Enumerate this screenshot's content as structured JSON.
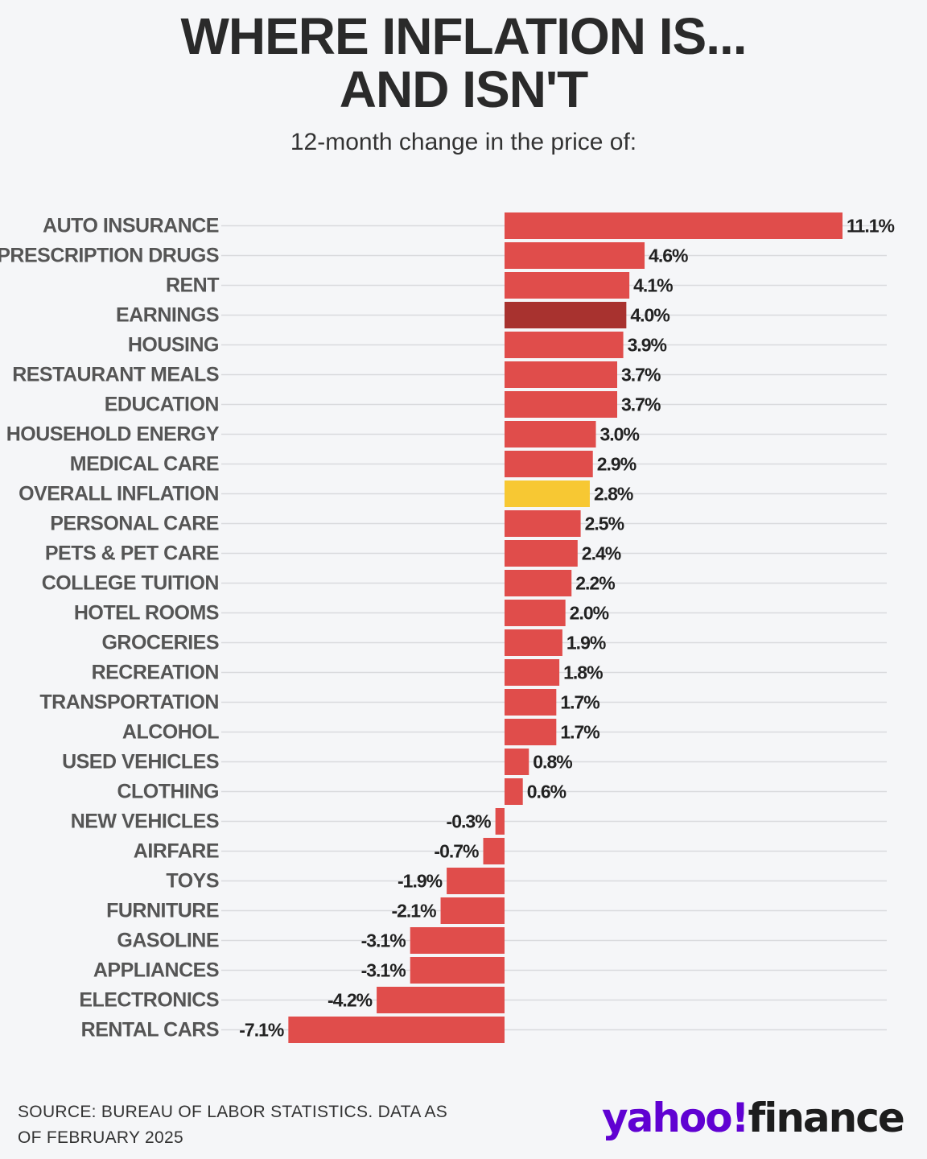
{
  "title_line1": "WHERE INFLATION IS...",
  "title_line2": "AND ISN'T",
  "subtitle": "12-month change in the price of:",
  "source_line1": "SOURCE: BUREAU OF LABOR STATISTICS. DATA AS",
  "source_line2": "OF FEBRUARY 2025",
  "logo": {
    "brand": "yahoo!",
    "product": "finance"
  },
  "colors": {
    "bar": "#e04d4b",
    "highlight_earnings": "#a8322f",
    "highlight_overall": "#f7c833",
    "grid": "#d9dadd",
    "brand_purple": "#6001d2"
  },
  "chart_data": {
    "type": "bar",
    "orientation": "horizontal",
    "title": "WHERE INFLATION IS... AND ISN'T",
    "subtitle": "12-month change in the price of:",
    "xlabel": "",
    "ylabel": "",
    "unit": "%",
    "xlim": [
      -7.1,
      11.1
    ],
    "grid": true,
    "categories": [
      "AUTO INSURANCE",
      "PRESCRIPTION DRUGS",
      "RENT",
      "EARNINGS",
      "HOUSING",
      "RESTAURANT MEALS",
      "EDUCATION",
      "HOUSEHOLD ENERGY",
      "MEDICAL CARE",
      "OVERALL INFLATION",
      "PERSONAL CARE",
      "PETS & PET CARE",
      "COLLEGE TUITION",
      "HOTEL ROOMS",
      "GROCERIES",
      "RECREATION",
      "TRANSPORTATION",
      "ALCOHOL",
      "USED VEHICLES",
      "CLOTHING",
      "NEW VEHICLES",
      "AIRFARE",
      "TOYS",
      "FURNITURE",
      "GASOLINE",
      "APPLIANCES",
      "ELECTRONICS",
      "RENTAL CARS"
    ],
    "values": [
      11.1,
      4.6,
      4.1,
      4.0,
      3.9,
      3.7,
      3.7,
      3.0,
      2.9,
      2.8,
      2.5,
      2.4,
      2.2,
      2.0,
      1.9,
      1.8,
      1.7,
      1.7,
      0.8,
      0.6,
      -0.3,
      -0.7,
      -1.9,
      -2.1,
      -3.1,
      -3.1,
      -4.2,
      -7.1
    ],
    "value_labels": [
      "11.1%",
      "4.6%",
      "4.1%",
      "4.0%",
      "3.9%",
      "3.7%",
      "3.7%",
      "3.0%",
      "2.9%",
      "2.8%",
      "2.5%",
      "2.4%",
      "2.2%",
      "2.0%",
      "1.9%",
      "1.8%",
      "1.7%",
      "1.7%",
      "0.8%",
      "0.6%",
      "-0.3%",
      "-0.7%",
      "-1.9%",
      "-2.1%",
      "-3.1%",
      "-3.1%",
      "-4.2%",
      "-7.1%"
    ],
    "highlights": {
      "EARNINGS": "highlight_earnings",
      "OVERALL INFLATION": "highlight_overall"
    }
  }
}
